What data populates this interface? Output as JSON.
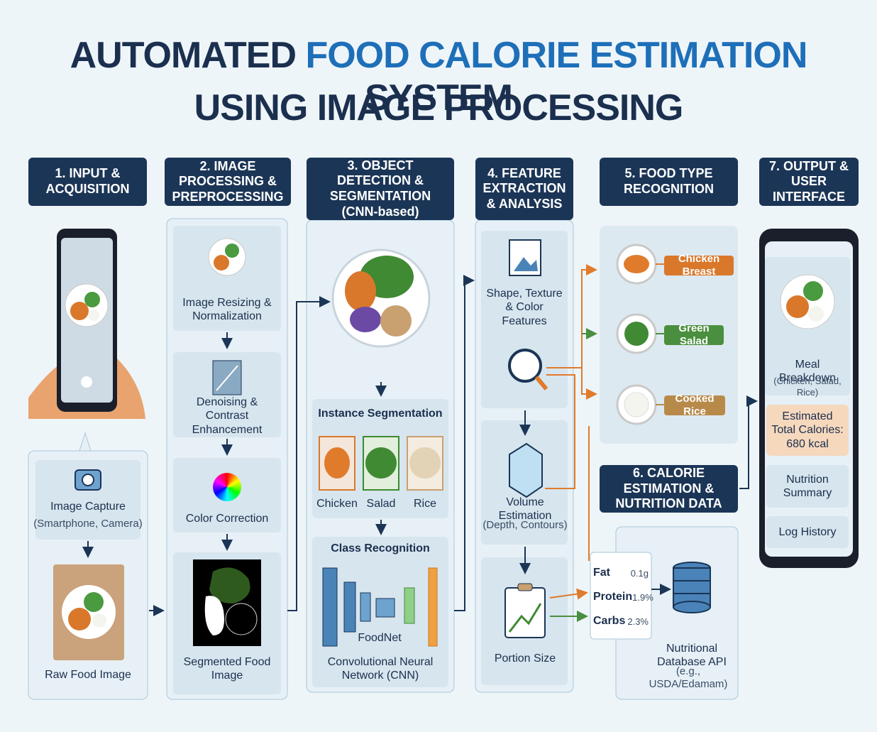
{
  "title": {
    "part1": "AUTOMATED",
    "part2": "FOOD CALORIE ESTIMATION",
    "part3": "SYSTEM",
    "line2": "USING IMAGE PROCESSING"
  },
  "input": {
    "header": "1. INPUT & ACQUISITION",
    "capture": "Image Capture",
    "capture_note": "(Smartphone, Camera)",
    "raw": "Raw Food Image"
  },
  "preprocessing": {
    "header": "2. IMAGE PROCESSING & PREPROCESSING",
    "steps": [
      "Image Resizing & Normalization",
      "Denoising & Contrast Enhancement",
      "Color Correction",
      "Segmented Food Image"
    ]
  },
  "detection": {
    "header": "3. OBJECT DETECTION & SEGMENTATION",
    "header_note": "(CNN-based)",
    "instance": "Instance Segmentation",
    "segments": [
      "Chicken",
      "Salad",
      "Rice"
    ],
    "class": "Class Recognition",
    "model": "FoodNet",
    "network": "Convolutional Neural Network (CNN)"
  },
  "features": {
    "header": "4. FEATURE EXTRACTION & ANALYSIS",
    "shape": "Shape, Texture & Color Features",
    "volume": "Volume Estimation",
    "volume_note": "(Depth, Contours)",
    "portion": "Portion Size"
  },
  "recognition": {
    "header": "5. FOOD TYPE RECOGNITION",
    "foods": [
      "Chicken Breast",
      "Green Salad",
      "Cooked Rice"
    ]
  },
  "calories": {
    "header": "6. CALORIE ESTIMATION & NUTRITION DATA",
    "nutrients": [
      {
        "name": "Fat",
        "value": "0.1g"
      },
      {
        "name": "Protein",
        "value": "1.9%"
      },
      {
        "name": "Carbs",
        "value": "2.3%"
      }
    ],
    "database": "Nutritional Database API",
    "database_note": "(e.g., USDA/Edamam)"
  },
  "output": {
    "header": "7. OUTPUT & USER INTERFACE",
    "breakdown": "Meal Breakdown",
    "breakdown_note": "(Chicken, Salad, Rice)",
    "total": "Estimated Total Calories: 680 kcal",
    "summary": "Nutrition Summary",
    "log": "Log History"
  }
}
